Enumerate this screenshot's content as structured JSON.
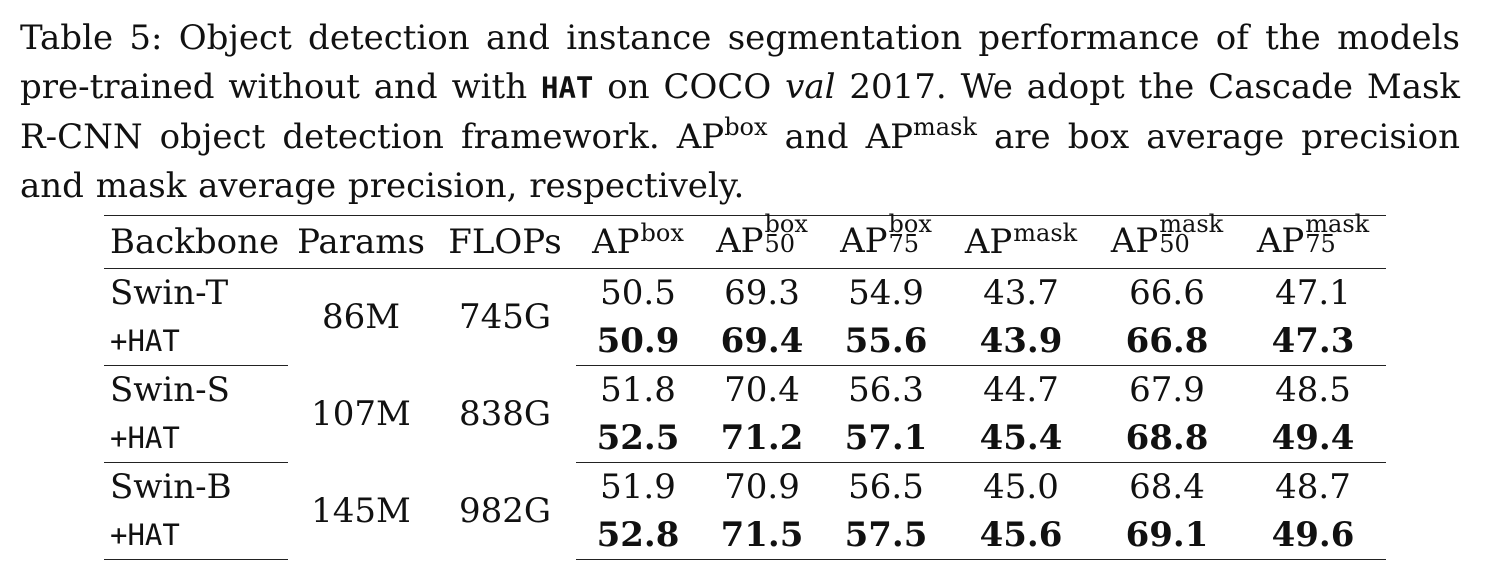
{
  "caption": {
    "label": "Table 5:",
    "text_a": "Object detection and instance segmentation performance of the models pre-trained without and with",
    "hat": "HAT",
    "text_b": "on COCO",
    "val": "val",
    "text_c": "2017. We adopt the Cascade Mask R-CNN object detection framework. AP",
    "sup_box": "box",
    "text_d": "and AP",
    "sup_mask": "mask",
    "text_e": "are box average precision and mask average precision, respectively."
  },
  "table": {
    "headers": {
      "backbone": "Backbone",
      "params": "Params",
      "flops": "FLOPs",
      "ap": "AP",
      "box": "box",
      "mask": "mask",
      "s50": "50",
      "s75": "75"
    },
    "groups": [
      {
        "params": "86M",
        "flops": "745G",
        "base": {
          "name": "Swin-T",
          "values": [
            "50.5",
            "69.3",
            "54.9",
            "43.7",
            "66.6",
            "47.1"
          ]
        },
        "hat": {
          "name": "+HAT",
          "values": [
            "50.9",
            "69.4",
            "55.6",
            "43.9",
            "66.8",
            "47.3"
          ]
        }
      },
      {
        "params": "107M",
        "flops": "838G",
        "base": {
          "name": "Swin-S",
          "values": [
            "51.8",
            "70.4",
            "56.3",
            "44.7",
            "67.9",
            "48.5"
          ]
        },
        "hat": {
          "name": "+HAT",
          "values": [
            "52.5",
            "71.2",
            "57.1",
            "45.4",
            "68.8",
            "49.4"
          ]
        }
      },
      {
        "params": "145M",
        "flops": "982G",
        "base": {
          "name": "Swin-B",
          "values": [
            "51.9",
            "70.9",
            "56.5",
            "45.0",
            "68.4",
            "48.7"
          ]
        },
        "hat": {
          "name": "+HAT",
          "values": [
            "52.8",
            "71.5",
            "57.5",
            "45.6",
            "69.1",
            "49.6"
          ]
        }
      }
    ]
  }
}
